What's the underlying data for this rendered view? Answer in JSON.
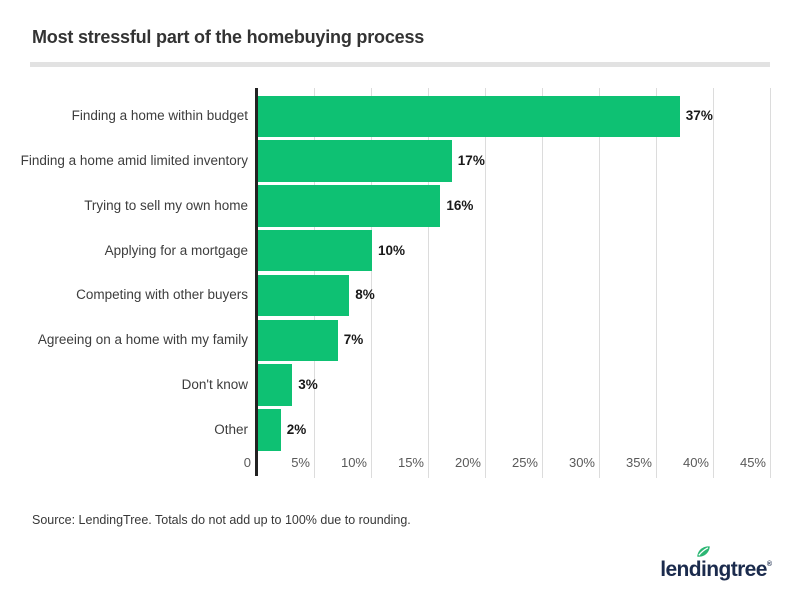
{
  "header": {
    "title": "Most stressful part of the homebuying process"
  },
  "chart_data": {
    "type": "bar",
    "orientation": "horizontal",
    "title": "Most stressful part of the homebuying process",
    "categories": [
      "Finding a home within budget",
      "Finding a home amid limited inventory",
      "Trying to sell my own home",
      "Applying for a mortgage",
      "Competing with other buyers",
      "Agreeing on a home with my family",
      "Don't know",
      "Other"
    ],
    "values": [
      37,
      17,
      16,
      10,
      8,
      7,
      3,
      2
    ],
    "value_labels": [
      "37%",
      "17%",
      "16%",
      "10%",
      "8%",
      "7%",
      "3%",
      "2%"
    ],
    "x_ticks": [
      {
        "label": "0",
        "value": 0
      },
      {
        "label": "5%",
        "value": 5
      },
      {
        "label": "10%",
        "value": 10
      },
      {
        "label": "15%",
        "value": 15
      },
      {
        "label": "20%",
        "value": 20
      },
      {
        "label": "25%",
        "value": 25
      },
      {
        "label": "30%",
        "value": 30
      },
      {
        "label": "35%",
        "value": 35
      },
      {
        "label": "40%",
        "value": 40
      },
      {
        "label": "45%",
        "value": 45
      }
    ],
    "xlim": [
      0,
      45
    ],
    "grid": true,
    "legend_position": "none",
    "colors": {
      "bar": "#0ec173",
      "gridline": "#dcdcdc",
      "axis_line": "#222222"
    }
  },
  "footer": {
    "source_note": "Source: LendingTree. Totals do not add up to 100% due to rounding."
  },
  "logo": {
    "brand": "lendingtree",
    "part_before_i": "lend",
    "letter_i": "i",
    "part_after_i": "ngtree",
    "registered_mark": "®",
    "colors": {
      "navy": "#1b2b4d",
      "leaf_green": "#2bb673"
    }
  }
}
